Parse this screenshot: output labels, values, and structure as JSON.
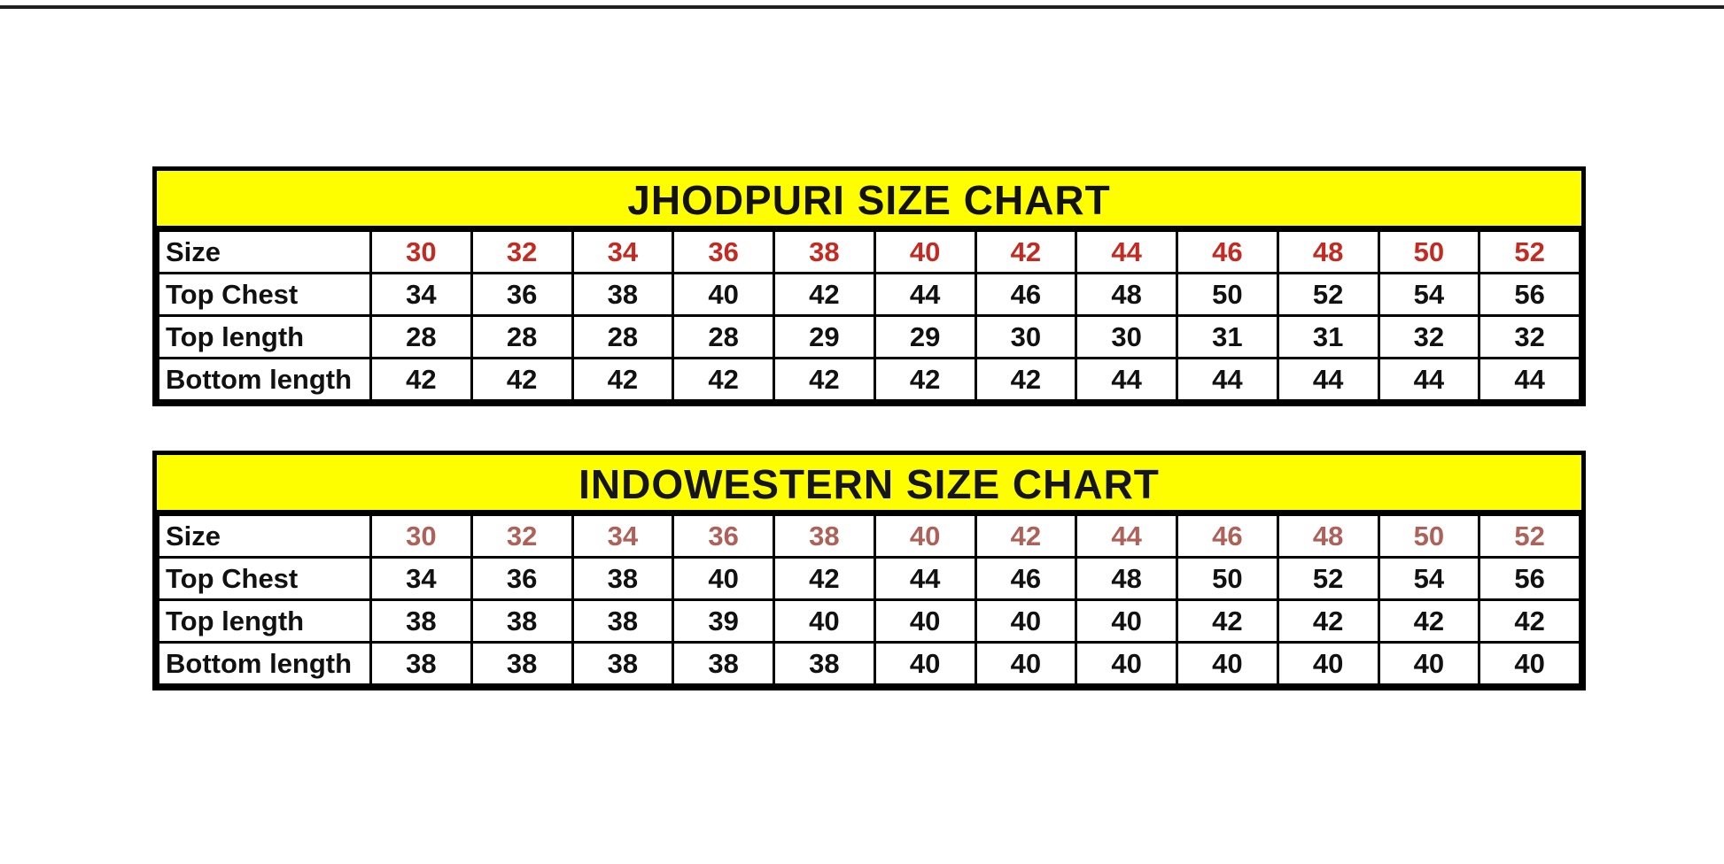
{
  "chart_data": [
    {
      "type": "table",
      "title": "JHODPURI SIZE CHART",
      "rows": [
        {
          "label": "Size",
          "values": [
            30,
            32,
            34,
            36,
            38,
            40,
            42,
            44,
            46,
            48,
            50,
            52
          ]
        },
        {
          "label": "Top Chest",
          "values": [
            34,
            36,
            38,
            40,
            42,
            44,
            46,
            48,
            50,
            52,
            54,
            56
          ]
        },
        {
          "label": "Top length",
          "values": [
            28,
            28,
            28,
            28,
            29,
            29,
            30,
            30,
            31,
            31,
            32,
            32
          ]
        },
        {
          "label": "Bottom length",
          "values": [
            42,
            42,
            42,
            42,
            42,
            42,
            42,
            44,
            44,
            44,
            44,
            44
          ]
        }
      ],
      "colors": {
        "title_bg": "#FEFE00",
        "title_text": "#121212",
        "size_values": "#C32A21",
        "body_values": "#111111",
        "border": "#000000"
      }
    },
    {
      "type": "table",
      "title": "INDOWESTERN SIZE CHART",
      "rows": [
        {
          "label": "Size",
          "values": [
            30,
            32,
            34,
            36,
            38,
            40,
            42,
            44,
            46,
            48,
            50,
            52
          ]
        },
        {
          "label": "Top Chest",
          "values": [
            34,
            36,
            38,
            40,
            42,
            44,
            46,
            48,
            50,
            52,
            54,
            56
          ]
        },
        {
          "label": "Top length",
          "values": [
            38,
            38,
            38,
            39,
            40,
            40,
            40,
            40,
            42,
            42,
            42,
            42
          ]
        },
        {
          "label": "Bottom length",
          "values": [
            38,
            38,
            38,
            38,
            38,
            40,
            40,
            40,
            40,
            40,
            40,
            40
          ]
        }
      ],
      "colors": {
        "title_bg": "#FEFE00",
        "title_text": "#15151f",
        "size_values": "#AE6159",
        "body_values": "#111111",
        "border": "#000000"
      }
    }
  ]
}
